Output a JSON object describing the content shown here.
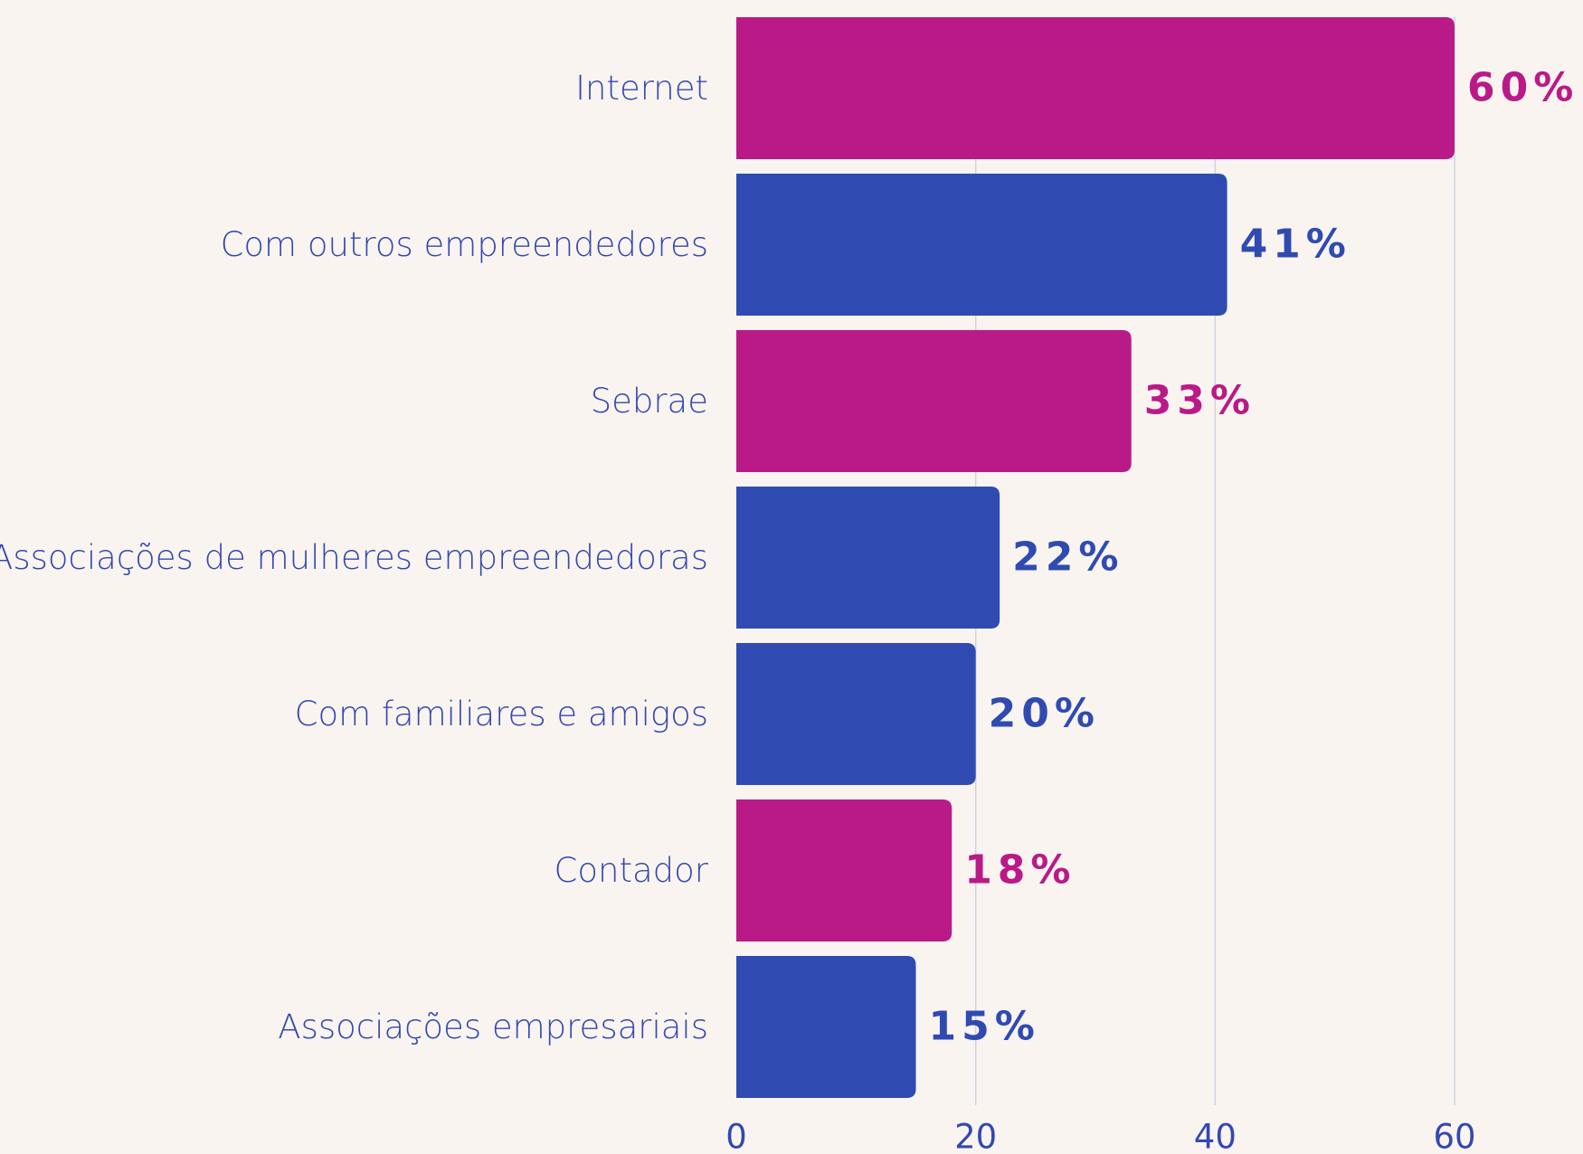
{
  "chart_data": {
    "type": "barh",
    "categories": [
      "Internet",
      "Com outros empreendedores",
      "Sebrae",
      "Associações de mulheres empreendedoras",
      "Com familiares e amigos",
      "Contador",
      "Associações empresariais"
    ],
    "values": [
      60,
      41,
      33,
      22,
      20,
      18,
      15
    ],
    "value_labels": [
      "60%",
      "41%",
      "33%",
      "22%",
      "20%",
      "18%",
      "15%"
    ],
    "colors": [
      "#ba1a87",
      "#2f4bb2",
      "#ba1a87",
      "#2f4bb2",
      "#2f4bb2",
      "#ba1a87",
      "#2f4bb2"
    ],
    "xlim": [
      0,
      60
    ],
    "xticks": [
      0,
      20,
      40,
      60
    ],
    "grid": true
  }
}
